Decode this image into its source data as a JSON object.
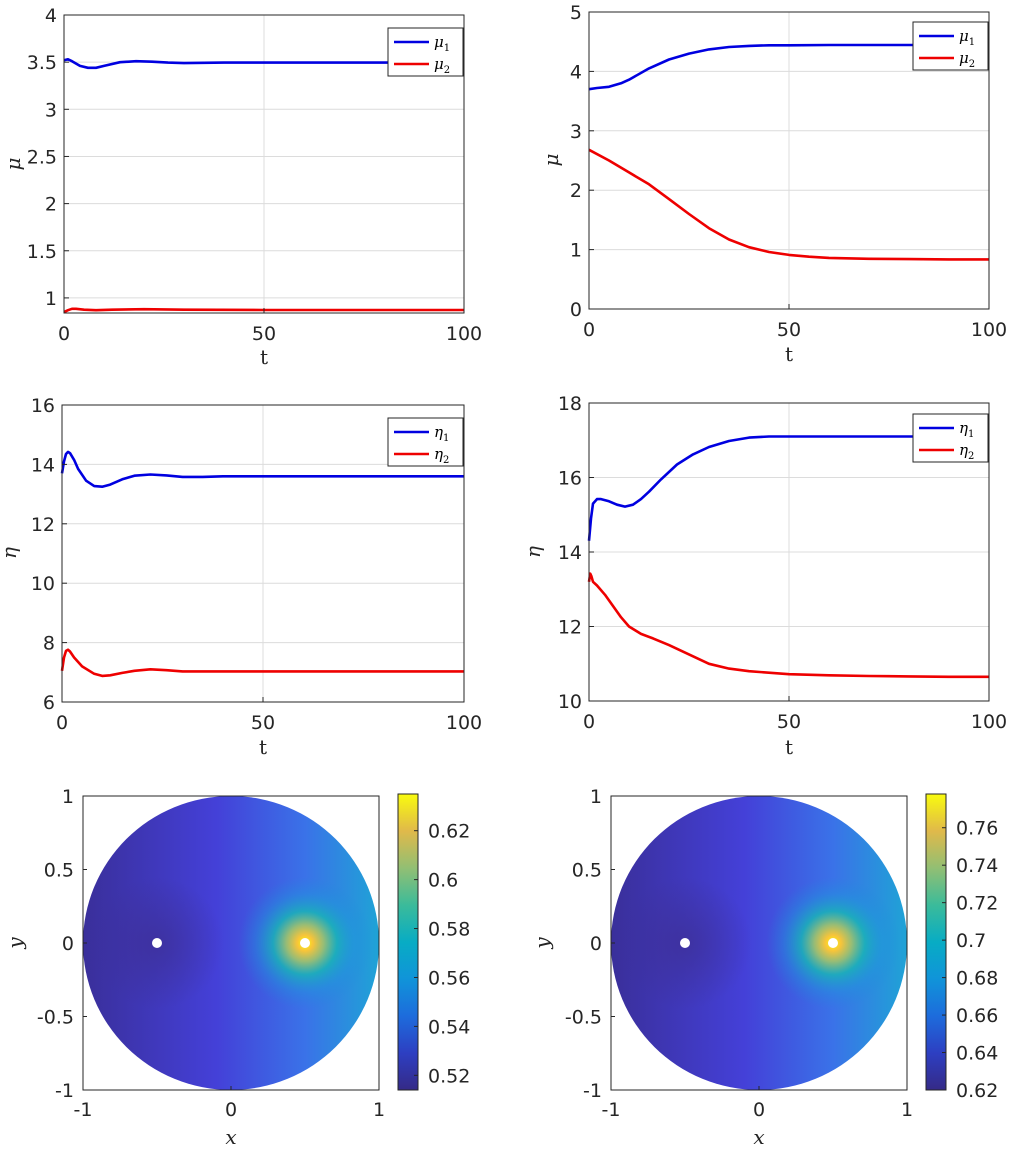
{
  "chart_data": [
    {
      "id": "mu_left",
      "type": "line",
      "xlabel": "t",
      "ylabel": "μ",
      "xlim": [
        0,
        100
      ],
      "ylim": [
        0.84,
        4
      ],
      "xticks": [
        0,
        50,
        100
      ],
      "xtick_labels": [
        "0",
        "50",
        "100"
      ],
      "yticks": [
        1,
        1.5,
        2,
        2.5,
        3,
        3.5,
        4
      ],
      "ytick_labels": [
        "1",
        "1.5",
        "2",
        "2.5",
        "3",
        "3.5",
        "4"
      ],
      "grid": true,
      "legend": "top-right",
      "series": [
        {
          "name": "μ",
          "sub": "1",
          "color": "#0000e0",
          "x": [
            0,
            1,
            2,
            4,
            6,
            8,
            10,
            14,
            18,
            22,
            26,
            30,
            40,
            50,
            60,
            70,
            80,
            90,
            100
          ],
          "values": [
            3.52,
            3.53,
            3.51,
            3.46,
            3.44,
            3.44,
            3.46,
            3.5,
            3.51,
            3.505,
            3.495,
            3.49,
            3.495,
            3.495,
            3.495,
            3.495,
            3.495,
            3.495,
            3.495
          ]
        },
        {
          "name": "μ",
          "sub": "2",
          "color": "#ee0000",
          "x": [
            0,
            1,
            2,
            3,
            5,
            8,
            12,
            20,
            30,
            50,
            70,
            100
          ],
          "values": [
            0.85,
            0.87,
            0.885,
            0.885,
            0.875,
            0.87,
            0.875,
            0.88,
            0.875,
            0.872,
            0.872,
            0.872
          ]
        }
      ]
    },
    {
      "id": "mu_right",
      "type": "line",
      "xlabel": "t",
      "ylabel": "μ",
      "xlim": [
        0,
        100
      ],
      "ylim": [
        0,
        5
      ],
      "xticks": [
        0,
        50,
        100
      ],
      "xtick_labels": [
        "0",
        "50",
        "100"
      ],
      "yticks": [
        0,
        1,
        2,
        3,
        4,
        5
      ],
      "ytick_labels": [
        "0",
        "1",
        "2",
        "3",
        "4",
        "5"
      ],
      "grid": true,
      "legend": "top-right",
      "series": [
        {
          "name": "μ",
          "sub": "1",
          "color": "#0000e0",
          "x": [
            0,
            2,
            5,
            8,
            10,
            15,
            20,
            25,
            30,
            35,
            40,
            45,
            50,
            60,
            70,
            80,
            90,
            100
          ],
          "values": [
            3.7,
            3.72,
            3.74,
            3.8,
            3.86,
            4.05,
            4.2,
            4.3,
            4.37,
            4.41,
            4.43,
            4.44,
            4.44,
            4.445,
            4.445,
            4.445,
            4.445,
            4.445
          ]
        },
        {
          "name": "μ",
          "sub": "2",
          "color": "#ee0000",
          "x": [
            0,
            5,
            10,
            15,
            20,
            25,
            30,
            35,
            40,
            45,
            50,
            55,
            60,
            70,
            80,
            90,
            100
          ],
          "values": [
            2.68,
            2.5,
            2.3,
            2.1,
            1.85,
            1.6,
            1.36,
            1.17,
            1.04,
            0.96,
            0.91,
            0.88,
            0.86,
            0.845,
            0.84,
            0.835,
            0.835
          ]
        }
      ]
    },
    {
      "id": "eta_left",
      "type": "line",
      "xlabel": "t",
      "ylabel": "η",
      "xlim": [
        0,
        100
      ],
      "ylim": [
        6,
        16
      ],
      "xticks": [
        0,
        50,
        100
      ],
      "xtick_labels": [
        "0",
        "50",
        "100"
      ],
      "yticks": [
        6,
        8,
        10,
        12,
        14,
        16
      ],
      "ytick_labels": [
        "6",
        "8",
        "10",
        "12",
        "14",
        "16"
      ],
      "grid": true,
      "legend": "top-right",
      "series": [
        {
          "name": "η",
          "sub": "1",
          "color": "#0000e0",
          "x": [
            0,
            0.5,
            1,
            1.5,
            2,
            3,
            4,
            6,
            8,
            10,
            12,
            15,
            18,
            22,
            26,
            30,
            35,
            40,
            50,
            60,
            70,
            80,
            90,
            100
          ],
          "values": [
            13.7,
            14.1,
            14.35,
            14.42,
            14.38,
            14.15,
            13.85,
            13.45,
            13.27,
            13.25,
            13.32,
            13.5,
            13.62,
            13.66,
            13.63,
            13.58,
            13.58,
            13.6,
            13.6,
            13.6,
            13.6,
            13.6,
            13.6,
            13.6
          ]
        },
        {
          "name": "η",
          "sub": "2",
          "color": "#ee0000",
          "x": [
            0,
            0.5,
            1,
            1.5,
            2,
            3,
            5,
            8,
            10,
            12,
            15,
            18,
            22,
            26,
            30,
            40,
            50,
            60,
            70,
            80,
            90,
            100
          ],
          "values": [
            7.05,
            7.5,
            7.72,
            7.76,
            7.7,
            7.5,
            7.2,
            6.95,
            6.88,
            6.9,
            6.98,
            7.05,
            7.1,
            7.07,
            7.03,
            7.03,
            7.03,
            7.03,
            7.03,
            7.03,
            7.03,
            7.03
          ]
        }
      ]
    },
    {
      "id": "eta_right",
      "type": "line",
      "xlabel": "t",
      "ylabel": "η",
      "xlim": [
        0,
        100
      ],
      "ylim": [
        10,
        18
      ],
      "xticks": [
        0,
        50,
        100
      ],
      "xtick_labels": [
        "0",
        "50",
        "100"
      ],
      "yticks": [
        10,
        12,
        14,
        16,
        18
      ],
      "ytick_labels": [
        "10",
        "12",
        "14",
        "16",
        "18"
      ],
      "grid": true,
      "legend": "top-right",
      "series": [
        {
          "name": "η",
          "sub": "1",
          "color": "#0000e0",
          "x": [
            0,
            0.5,
            1,
            2,
            3,
            5,
            7,
            9,
            11,
            13,
            15,
            18,
            22,
            26,
            30,
            35,
            40,
            45,
            50,
            60,
            70,
            80,
            90,
            100
          ],
          "values": [
            14.3,
            14.9,
            15.3,
            15.42,
            15.42,
            15.36,
            15.27,
            15.22,
            15.27,
            15.42,
            15.62,
            15.95,
            16.35,
            16.62,
            16.82,
            16.98,
            17.07,
            17.1,
            17.1,
            17.1,
            17.1,
            17.1,
            17.1,
            17.1
          ]
        },
        {
          "name": "η",
          "sub": "2",
          "color": "#ee0000",
          "x": [
            0,
            0.3,
            0.6,
            1,
            2,
            4,
            6,
            8,
            10,
            13,
            16,
            20,
            25,
            30,
            35,
            40,
            50,
            60,
            70,
            80,
            90,
            100
          ],
          "values": [
            13.2,
            13.42,
            13.35,
            13.2,
            13.1,
            12.85,
            12.55,
            12.25,
            12.0,
            11.8,
            11.68,
            11.5,
            11.25,
            11.0,
            10.87,
            10.8,
            10.72,
            10.69,
            10.67,
            10.66,
            10.65,
            10.65
          ]
        }
      ]
    },
    {
      "id": "disk_left",
      "type": "heatmap",
      "xlabel": "x",
      "ylabel": "y",
      "xlim": [
        -1,
        1
      ],
      "ylim": [
        -1,
        1
      ],
      "xticks": [
        -1,
        0,
        1
      ],
      "xtick_labels": [
        "-1",
        "0",
        "1"
      ],
      "yticks": [
        -1,
        -0.5,
        0,
        0.5,
        1
      ],
      "ytick_labels": [
        "-1",
        "-0.5",
        "0",
        "0.5",
        "1"
      ],
      "sources": [
        {
          "x": -0.5,
          "y": 0
        },
        {
          "x": 0.5,
          "y": 0
        }
      ],
      "colorbar": {
        "min": 0.514,
        "max": 0.635,
        "ticks": [
          0.52,
          0.54,
          0.56,
          0.58,
          0.6,
          0.62
        ],
        "tick_labels": [
          "0.52",
          "0.54",
          "0.56",
          "0.58",
          "0.6",
          "0.62"
        ]
      }
    },
    {
      "id": "disk_right",
      "type": "heatmap",
      "xlabel": "x",
      "ylabel": "y",
      "xlim": [
        -1,
        1
      ],
      "ylim": [
        -1,
        1
      ],
      "xticks": [
        -1,
        0,
        1
      ],
      "xtick_labels": [
        "-1",
        "0",
        "1"
      ],
      "yticks": [
        -1,
        -0.5,
        0,
        0.5,
        1
      ],
      "ytick_labels": [
        "-1",
        "-0.5",
        "0",
        "0.5",
        "1"
      ],
      "sources": [
        {
          "x": -0.5,
          "y": 0
        },
        {
          "x": 0.5,
          "y": 0
        }
      ],
      "colorbar": {
        "min": 0.62,
        "max": 0.778,
        "ticks": [
          0.62,
          0.64,
          0.66,
          0.68,
          0.7,
          0.72,
          0.74,
          0.76
        ],
        "tick_labels": [
          "0.62",
          "0.64",
          "0.66",
          "0.68",
          "0.7",
          "0.72",
          "0.74",
          "0.76"
        ]
      }
    }
  ]
}
